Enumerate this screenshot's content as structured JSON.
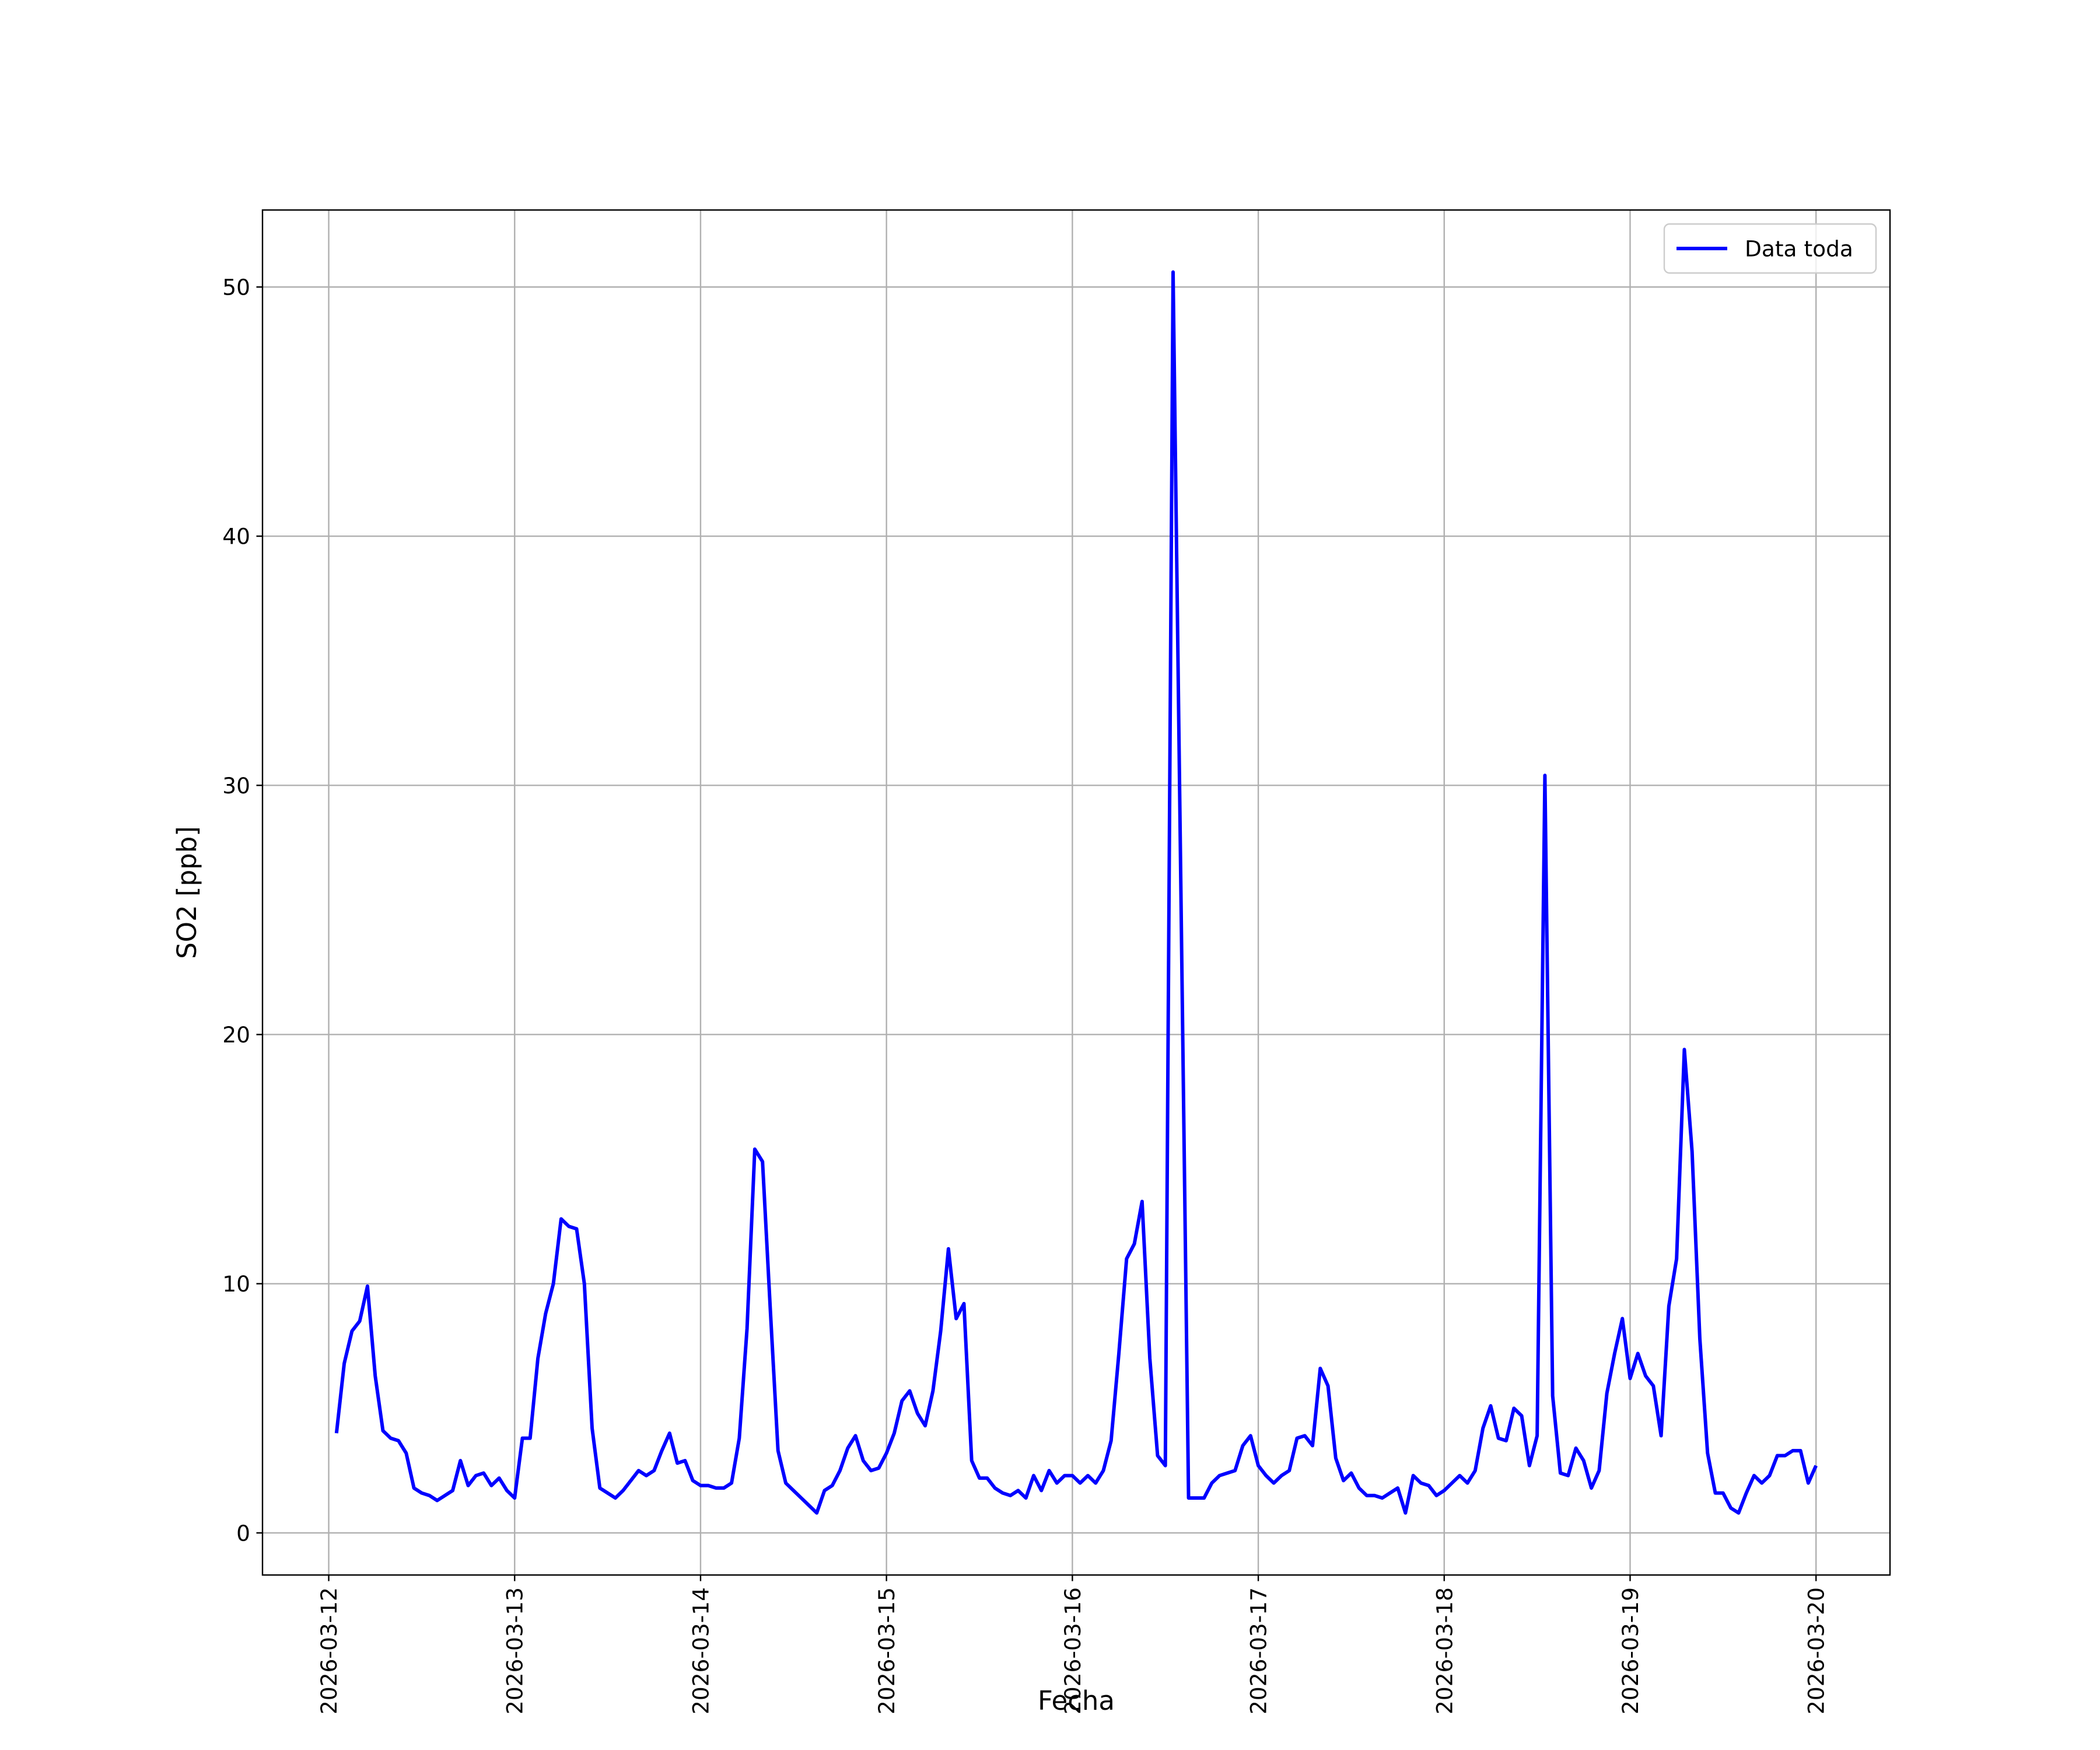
{
  "chart_data": {
    "type": "line",
    "xlabel": "Fecha",
    "ylabel": "SO2 [ppb]",
    "x": [
      "2026-03-12 01:00",
      "2026-03-12 02:00",
      "2026-03-12 03:00",
      "2026-03-12 04:00",
      "2026-03-12 05:00",
      "2026-03-12 06:00",
      "2026-03-12 07:00",
      "2026-03-12 08:00",
      "2026-03-12 09:00",
      "2026-03-12 10:00",
      "2026-03-12 11:00",
      "2026-03-12 12:00",
      "2026-03-12 13:00",
      "2026-03-12 14:00",
      "2026-03-12 15:00",
      "2026-03-12 16:00",
      "2026-03-12 17:00",
      "2026-03-12 18:00",
      "2026-03-12 19:00",
      "2026-03-12 20:00",
      "2026-03-12 21:00",
      "2026-03-12 22:00",
      "2026-03-12 23:00",
      "2026-03-13 00:00",
      "2026-03-13 01:00",
      "2026-03-13 02:00",
      "2026-03-13 03:00",
      "2026-03-13 04:00",
      "2026-03-13 05:00",
      "2026-03-13 06:00",
      "2026-03-13 07:00",
      "2026-03-13 08:00",
      "2026-03-13 09:00",
      "2026-03-13 10:00",
      "2026-03-13 11:00",
      "2026-03-13 12:00",
      "2026-03-13 13:00",
      "2026-03-13 14:00",
      "2026-03-13 15:00",
      "2026-03-13 16:00",
      "2026-03-13 17:00",
      "2026-03-13 18:00",
      "2026-03-13 19:00",
      "2026-03-13 20:00",
      "2026-03-13 21:00",
      "2026-03-13 22:00",
      "2026-03-13 23:00",
      "2026-03-14 00:00",
      "2026-03-14 01:00",
      "2026-03-14 02:00",
      "2026-03-14 03:00",
      "2026-03-14 04:00",
      "2026-03-14 05:00",
      "2026-03-14 06:00",
      "2026-03-14 07:00",
      "2026-03-14 08:00",
      "2026-03-14 09:00",
      "2026-03-14 10:00",
      "2026-03-14 11:00",
      "2026-03-14 12:00",
      "2026-03-14 13:00",
      "2026-03-14 14:00",
      "2026-03-14 15:00",
      "2026-03-14 16:00",
      "2026-03-14 17:00",
      "2026-03-14 18:00",
      "2026-03-14 19:00",
      "2026-03-14 20:00",
      "2026-03-14 21:00",
      "2026-03-14 22:00",
      "2026-03-14 23:00",
      "2026-03-15 00:00",
      "2026-03-15 01:00",
      "2026-03-15 02:00",
      "2026-03-15 03:00",
      "2026-03-15 04:00",
      "2026-03-15 05:00",
      "2026-03-15 06:00",
      "2026-03-15 07:00",
      "2026-03-15 08:00",
      "2026-03-15 09:00",
      "2026-03-15 10:00",
      "2026-03-15 11:00",
      "2026-03-15 12:00",
      "2026-03-15 13:00",
      "2026-03-15 14:00",
      "2026-03-15 15:00",
      "2026-03-15 16:00",
      "2026-03-15 17:00",
      "2026-03-15 18:00",
      "2026-03-15 19:00",
      "2026-03-15 20:00",
      "2026-03-15 21:00",
      "2026-03-15 22:00",
      "2026-03-15 23:00",
      "2026-03-16 00:00",
      "2026-03-16 01:00",
      "2026-03-16 02:00",
      "2026-03-16 03:00",
      "2026-03-16 04:00",
      "2026-03-16 05:00",
      "2026-03-16 06:00",
      "2026-03-16 07:00",
      "2026-03-16 08:00",
      "2026-03-16 09:00",
      "2026-03-16 10:00",
      "2026-03-16 11:00",
      "2026-03-16 12:00",
      "2026-03-16 13:00",
      "2026-03-16 14:00",
      "2026-03-16 15:00",
      "2026-03-16 16:00",
      "2026-03-16 17:00",
      "2026-03-16 18:00",
      "2026-03-16 19:00",
      "2026-03-16 20:00",
      "2026-03-16 21:00",
      "2026-03-16 22:00",
      "2026-03-16 23:00",
      "2026-03-17 00:00",
      "2026-03-17 01:00",
      "2026-03-17 02:00",
      "2026-03-17 03:00",
      "2026-03-17 04:00",
      "2026-03-17 05:00",
      "2026-03-17 06:00",
      "2026-03-17 07:00",
      "2026-03-17 08:00",
      "2026-03-17 09:00",
      "2026-03-17 10:00",
      "2026-03-17 11:00",
      "2026-03-17 12:00",
      "2026-03-17 13:00",
      "2026-03-17 14:00",
      "2026-03-17 15:00",
      "2026-03-17 16:00",
      "2026-03-17 17:00",
      "2026-03-17 18:00",
      "2026-03-17 19:00",
      "2026-03-17 20:00",
      "2026-03-17 21:00",
      "2026-03-17 22:00",
      "2026-03-17 23:00",
      "2026-03-18 00:00",
      "2026-03-18 01:00",
      "2026-03-18 02:00",
      "2026-03-18 03:00",
      "2026-03-18 04:00",
      "2026-03-18 05:00",
      "2026-03-18 06:00",
      "2026-03-18 07:00",
      "2026-03-18 08:00",
      "2026-03-18 09:00",
      "2026-03-18 10:00",
      "2026-03-18 11:00",
      "2026-03-18 12:00",
      "2026-03-18 13:00",
      "2026-03-18 14:00",
      "2026-03-18 15:00",
      "2026-03-18 16:00",
      "2026-03-18 17:00",
      "2026-03-18 18:00",
      "2026-03-18 19:00",
      "2026-03-18 20:00",
      "2026-03-18 21:00",
      "2026-03-18 22:00",
      "2026-03-18 23:00",
      "2026-03-19 00:00",
      "2026-03-19 01:00",
      "2026-03-19 02:00",
      "2026-03-19 03:00",
      "2026-03-19 04:00",
      "2026-03-19 05:00",
      "2026-03-19 06:00",
      "2026-03-19 07:00",
      "2026-03-19 08:00",
      "2026-03-19 09:00",
      "2026-03-19 10:00",
      "2026-03-19 11:00",
      "2026-03-19 12:00",
      "2026-03-19 13:00",
      "2026-03-19 14:00",
      "2026-03-19 15:00",
      "2026-03-19 16:00",
      "2026-03-19 17:00",
      "2026-03-19 18:00",
      "2026-03-19 19:00",
      "2026-03-19 20:00",
      "2026-03-19 21:00",
      "2026-03-19 22:00",
      "2026-03-19 23:00",
      "2026-03-20 00:00"
    ],
    "series": [
      {
        "name": "Data toda",
        "color": "#0000ff",
        "values": [
          4.0,
          6.8,
          8.1,
          8.5,
          9.9,
          6.3,
          4.1,
          3.8,
          3.7,
          3.2,
          1.8,
          1.6,
          1.5,
          1.3,
          1.5,
          1.7,
          2.9,
          1.9,
          2.3,
          2.4,
          1.9,
          2.2,
          1.7,
          1.4,
          3.8,
          3.8,
          7.0,
          8.8,
          10.0,
          12.6,
          12.3,
          12.2,
          10.0,
          4.2,
          1.8,
          1.6,
          1.4,
          1.7,
          2.1,
          2.5,
          2.3,
          2.5,
          3.3,
          4.0,
          2.8,
          2.9,
          2.1,
          1.9,
          1.9,
          1.8,
          1.8,
          2.0,
          3.8,
          8.2,
          15.4,
          14.9,
          9.0,
          3.3,
          2.0,
          1.7,
          1.4,
          1.1,
          0.8,
          1.7,
          1.9,
          2.5,
          3.4,
          3.9,
          2.9,
          2.5,
          2.6,
          3.2,
          4.0,
          5.3,
          5.7,
          4.8,
          4.3,
          5.7,
          8.1,
          11.4,
          8.6,
          9.2,
          2.9,
          2.2,
          2.2,
          1.8,
          1.6,
          1.5,
          1.7,
          1.4,
          2.3,
          1.7,
          2.5,
          2.0,
          2.3,
          2.3,
          2.0,
          2.3,
          2.0,
          2.5,
          3.7,
          7.2,
          11.0,
          11.6,
          13.3,
          7.0,
          3.1,
          2.7,
          50.6,
          26.0,
          1.4,
          1.4,
          1.4,
          2.0,
          2.3,
          2.4,
          2.5,
          3.5,
          3.9,
          2.7,
          2.3,
          2.0,
          2.3,
          2.5,
          3.8,
          3.9,
          3.5,
          6.6,
          5.9,
          3.0,
          2.1,
          2.4,
          1.8,
          1.5,
          1.5,
          1.4,
          1.6,
          1.8,
          0.8,
          2.3,
          2.0,
          1.9,
          1.5,
          1.7,
          2.0,
          2.3,
          2.0,
          2.5,
          4.2,
          5.1,
          3.8,
          3.7,
          5.0,
          4.7,
          2.7,
          3.9,
          30.4,
          5.5,
          2.4,
          2.3,
          3.4,
          2.9,
          1.8,
          2.5,
          5.6,
          7.2,
          8.6,
          6.2,
          7.2,
          6.3,
          5.9,
          3.9,
          9.1,
          11.0,
          19.4,
          15.3,
          7.8,
          3.2,
          1.6,
          1.6,
          1.0,
          0.8,
          1.6,
          2.3,
          2.0,
          2.3,
          3.1,
          3.1,
          3.3,
          3.3,
          2.0,
          2.7
        ]
      }
    ],
    "xlim": [
      "2026-03-11 15:27",
      "2026-03-20 09:33"
    ],
    "xticks": [
      "2026-03-12",
      "2026-03-13",
      "2026-03-14",
      "2026-03-15",
      "2026-03-16",
      "2026-03-17",
      "2026-03-18",
      "2026-03-19",
      "2026-03-20"
    ],
    "ylim": [
      -1.69,
      53.09
    ],
    "yticks": [
      0,
      10,
      20,
      30,
      40,
      50
    ],
    "grid": true,
    "legend": "upper right"
  }
}
